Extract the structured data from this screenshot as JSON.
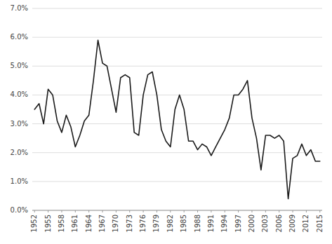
{
  "chart_data": {
    "type": "line",
    "x": [
      1952,
      1953,
      1954,
      1955,
      1956,
      1957,
      1958,
      1959,
      1960,
      1961,
      1962,
      1963,
      1964,
      1965,
      1966,
      1967,
      1968,
      1969,
      1970,
      1971,
      1972,
      1973,
      1974,
      1975,
      1976,
      1977,
      1978,
      1979,
      1980,
      1981,
      1982,
      1983,
      1984,
      1985,
      1986,
      1987,
      1988,
      1989,
      1990,
      1991,
      1992,
      1993,
      1994,
      1995,
      1996,
      1997,
      1998,
      1999,
      2000,
      2001,
      2002,
      2003,
      2004,
      2005,
      2006,
      2007,
      2008,
      2009,
      2010,
      2011,
      2012,
      2013,
      2014,
      2015
    ],
    "values": [
      0.035,
      0.037,
      0.03,
      0.042,
      0.04,
      0.031,
      0.027,
      0.033,
      0.029,
      0.022,
      0.026,
      0.031,
      0.033,
      0.045,
      0.059,
      0.051,
      0.05,
      0.042,
      0.034,
      0.046,
      0.047,
      0.046,
      0.027,
      0.026,
      0.04,
      0.047,
      0.048,
      0.04,
      0.028,
      0.024,
      0.022,
      0.035,
      0.04,
      0.035,
      0.024,
      0.024,
      0.021,
      0.023,
      0.022,
      0.019,
      0.022,
      0.025,
      0.028,
      0.032,
      0.04,
      0.04,
      0.042,
      0.045,
      0.032,
      0.025,
      0.014,
      0.026,
      0.026,
      0.025,
      0.026,
      0.024,
      0.004,
      0.018,
      0.019,
      0.023,
      0.019,
      0.021,
      0.017,
      0.017
    ],
    "color": "#1a1a1a",
    "xlim": [
      1951.5,
      2015.5
    ],
    "xticks": [
      1952,
      1955,
      1958,
      1961,
      1964,
      1967,
      1970,
      1973,
      1976,
      1979,
      1982,
      1985,
      1988,
      1991,
      1994,
      1997,
      2000,
      2003,
      2006,
      2009,
      2012,
      2015
    ],
    "ylim": [
      0.0,
      0.07
    ],
    "yticks": [
      {
        "value": 0.0,
        "label": "0.0%"
      },
      {
        "value": 0.01,
        "label": "1.0%"
      },
      {
        "value": 0.02,
        "label": "2.0%"
      },
      {
        "value": 0.03,
        "label": "3.0%"
      },
      {
        "value": 0.04,
        "label": "4.0%"
      },
      {
        "value": 0.05,
        "label": "5.0%"
      },
      {
        "value": 0.06,
        "label": "6.0%"
      },
      {
        "value": 0.07,
        "label": "7.0%"
      }
    ],
    "grid": true
  }
}
